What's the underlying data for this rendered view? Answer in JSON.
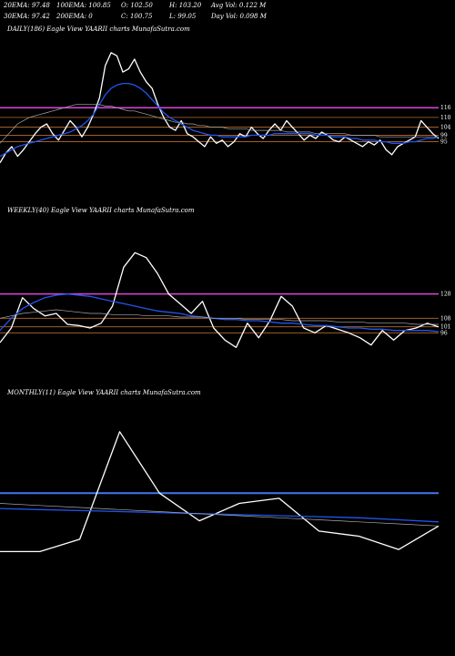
{
  "header": {
    "row1": [
      {
        "label": "20EMA:",
        "value": "97.48"
      },
      {
        "label": "100EMA:",
        "value": "100.85"
      },
      {
        "label": "O:",
        "value": "102.50"
      },
      {
        "label": "H:",
        "value": "103.20"
      },
      {
        "label": "Avg Vol:",
        "value": "0.122  M"
      }
    ],
    "row2": [
      {
        "label": "30EMA:",
        "value": "97.42"
      },
      {
        "label": "200EMA:",
        "value": "0"
      },
      {
        "label": "C:",
        "value": "100.75"
      },
      {
        "label": "L:",
        "value": "99.05"
      },
      {
        "label": "Day Vol:",
        "value": "0.098  M"
      }
    ]
  },
  "panels": {
    "daily": {
      "label": "DAILY(186) Eagle  View  YAARII charts MunafaSutra.com"
    },
    "weekly": {
      "label": "WEEKLY(40) Eagle  View  YAARII charts MunafaSutra.com"
    },
    "monthly": {
      "label": "MONTHLY(11) Eagle  View  YAARII charts MunafaSutra.com"
    }
  },
  "colors": {
    "price": "#ffffff",
    "ema": "#2255ee",
    "resistance": "#dd44dd",
    "support": "#cc7733",
    "avg": "#aaaaaa",
    "monthly_level": "#4477ee"
  },
  "chart_data": [
    {
      "type": "line",
      "name": "daily",
      "ylim": [
        70,
        160
      ],
      "y_ticks": [
        116,
        110,
        104,
        99,
        95
      ],
      "levels": [
        {
          "kind": "resistance",
          "value": 116
        },
        {
          "kind": "support",
          "value": 110
        },
        {
          "kind": "support",
          "value": 104
        },
        {
          "kind": "support",
          "value": 99
        },
        {
          "kind": "support",
          "value": 95
        }
      ],
      "series": [
        {
          "role": "price",
          "values": [
            82,
            88,
            92,
            86,
            90,
            95,
            100,
            104,
            106,
            100,
            96,
            102,
            108,
            104,
            98,
            104,
            112,
            122,
            142,
            150,
            148,
            138,
            140,
            146,
            138,
            132,
            128,
            118,
            110,
            104,
            102,
            108,
            100,
            98,
            95,
            92,
            98,
            94,
            96,
            92,
            95,
            100,
            98,
            104,
            100,
            97,
            102,
            106,
            102,
            108,
            104,
            100,
            96,
            99,
            97,
            101,
            99,
            96,
            95,
            98,
            96,
            94,
            92,
            95,
            93,
            96,
            90,
            87,
            92,
            94,
            96,
            98,
            108,
            104,
            100,
            97
          ]
        },
        {
          "role": "ema",
          "values": [
            86,
            88,
            90,
            92,
            93,
            94,
            95,
            96,
            97,
            98,
            99,
            100,
            101,
            103,
            105,
            108,
            112,
            118,
            124,
            128,
            130,
            131,
            131,
            130,
            128,
            125,
            121,
            117,
            113,
            110,
            108,
            106,
            104,
            102,
            101,
            100,
            99,
            99,
            98,
            98,
            98,
            98,
            98,
            99,
            99,
            99,
            99,
            100,
            100,
            100,
            100,
            100,
            100,
            100,
            99,
            99,
            99,
            98,
            98,
            98,
            97,
            97,
            96,
            96,
            96,
            95,
            95,
            94,
            94,
            94,
            95,
            95,
            96,
            97,
            97,
            98
          ]
        },
        {
          "role": "avg",
          "values": [
            94,
            98,
            102,
            106,
            108,
            110,
            111,
            112,
            113,
            114,
            115,
            116,
            117,
            118,
            118,
            118,
            118,
            118,
            117,
            117,
            116,
            115,
            114,
            114,
            113,
            112,
            111,
            110,
            109,
            108,
            107,
            107,
            106,
            106,
            105,
            105,
            104,
            104,
            104,
            103,
            103,
            103,
            103,
            102,
            102,
            102,
            102,
            102,
            102,
            101,
            101,
            101,
            101,
            101,
            100,
            100,
            100,
            100,
            100,
            100,
            99,
            99,
            99,
            99,
            99,
            98,
            98,
            98,
            98,
            98,
            98,
            98,
            98,
            98,
            98,
            98
          ]
        }
      ]
    },
    {
      "type": "line",
      "name": "weekly",
      "ylim": [
        70,
        190
      ],
      "y_ticks": [
        128,
        108,
        101,
        96
      ],
      "levels": [
        {
          "kind": "resistance",
          "value": 128
        },
        {
          "kind": "support",
          "value": 108
        },
        {
          "kind": "support",
          "value": 101
        },
        {
          "kind": "support",
          "value": 96
        }
      ],
      "series": [
        {
          "role": "price",
          "values": [
            88,
            100,
            125,
            116,
            110,
            112,
            103,
            102,
            100,
            104,
            118,
            150,
            162,
            158,
            145,
            128,
            120,
            112,
            122,
            100,
            90,
            84,
            104,
            92,
            106,
            126,
            118,
            100,
            96,
            102,
            99,
            96,
            92,
            86,
            98,
            90,
            98,
            100,
            104,
            101
          ]
        },
        {
          "role": "ema",
          "values": [
            98,
            108,
            116,
            121,
            125,
            127,
            128,
            127,
            126,
            124,
            122,
            120,
            118,
            116,
            114,
            113,
            112,
            110,
            109,
            108,
            107,
            107,
            106,
            106,
            105,
            104,
            104,
            103,
            102,
            102,
            101,
            100,
            100,
            99,
            99,
            98,
            98,
            98,
            98,
            97
          ]
        },
        {
          "role": "avg",
          "values": [
            108,
            110,
            112,
            113,
            114,
            115,
            114,
            113,
            112,
            112,
            111,
            111,
            111,
            110,
            110,
            110,
            109,
            109,
            109,
            108,
            108,
            108,
            107,
            107,
            107,
            107,
            106,
            106,
            106,
            106,
            105,
            105,
            105,
            104,
            104,
            104,
            104,
            103,
            103,
            103
          ]
        }
      ]
    },
    {
      "type": "line",
      "name": "monthly",
      "ylim": [
        80,
        240
      ],
      "y_ticks": [],
      "levels": [
        {
          "kind": "monthly_level",
          "value": 150
        }
      ],
      "series": [
        {
          "role": "price",
          "values": [
            93,
            93,
            105,
            210,
            150,
            123,
            140,
            145,
            113,
            108,
            95,
            118
          ]
        },
        {
          "role": "ema",
          "values": [
            135,
            134,
            133,
            132,
            131,
            130,
            129,
            128,
            127,
            126,
            124,
            122
          ]
        },
        {
          "role": "avg",
          "values": [
            140,
            138,
            136,
            134,
            132,
            130,
            128,
            126,
            124,
            122,
            120,
            118
          ]
        }
      ]
    }
  ]
}
